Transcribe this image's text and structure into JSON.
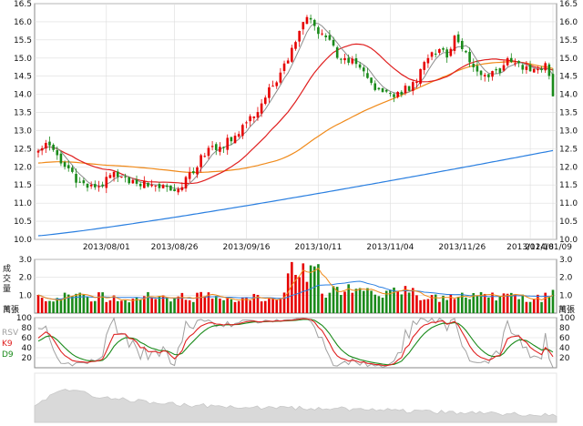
{
  "colors": {
    "up": "#e60000",
    "down": "#1a8a1a",
    "ma_short": "#8c8c8c",
    "ma_mid": "#e02020",
    "ma_long": "#f08a1a",
    "ma_longer": "#2a7fe0",
    "rsv": "#a0a0a0",
    "k9": "#e02020",
    "d9": "#1a8a1a",
    "grid": "#dddddd",
    "frame": "#8a8a8a",
    "overview": "#d9d9d9"
  },
  "price_panel": {
    "ylim": [
      10.0,
      16.5
    ],
    "y_ticks": [
      "16.5",
      "16.0",
      "15.5",
      "15.0",
      "14.5",
      "14.0",
      "13.5",
      "13.0",
      "12.5",
      "12.0",
      "11.5",
      "11.0",
      "10.5",
      "10.0"
    ],
    "x_tick_labels": [
      "2013/08/01",
      "2013/08/26",
      "2013/09/16",
      "2013/10/11",
      "2013/11/04",
      "2013/11/26",
      "2013/12/18",
      "2014/01/09"
    ]
  },
  "volume_panel": {
    "label": "成交量",
    "ylim": [
      0,
      3.0
    ],
    "y_ticks": [
      "3.0",
      "2.0",
      "1.0"
    ],
    "unit_label_left": "萬張",
    "unit_label_right": "萬張"
  },
  "kd_panel": {
    "legend": [
      "RSV",
      "K9",
      "D9"
    ],
    "ylim": [
      0,
      100
    ],
    "y_ticks": [
      "100",
      "80",
      "60",
      "40",
      "20"
    ]
  },
  "chart_data": {
    "type": "candlestick",
    "price": {
      "anchors": [
        [
          0,
          12.45
        ],
        [
          3,
          12.7
        ],
        [
          5,
          12.3
        ],
        [
          8,
          11.9
        ],
        [
          11,
          11.55
        ],
        [
          14,
          11.4
        ],
        [
          17,
          11.55
        ],
        [
          20,
          11.8
        ],
        [
          24,
          11.65
        ],
        [
          28,
          11.55
        ],
        [
          31,
          11.5
        ],
        [
          35,
          11.3
        ],
        [
          38,
          11.5
        ],
        [
          41,
          11.9
        ],
        [
          44,
          12.4
        ],
        [
          48,
          12.55
        ],
        [
          52,
          12.85
        ],
        [
          55,
          13.2
        ],
        [
          58,
          13.6
        ],
        [
          61,
          14.1
        ],
        [
          64,
          14.6
        ],
        [
          66,
          15.0
        ],
        [
          69,
          15.8
        ],
        [
          71,
          16.1
        ],
        [
          73,
          15.9
        ],
        [
          75,
          15.6
        ],
        [
          77,
          15.4
        ],
        [
          79,
          15.1
        ],
        [
          82,
          14.95
        ],
        [
          84,
          14.9
        ],
        [
          86,
          14.55
        ],
        [
          88,
          14.3
        ],
        [
          90,
          14.15
        ],
        [
          92,
          14.0
        ],
        [
          94,
          13.9
        ],
        [
          96,
          14.1
        ],
        [
          98,
          14.2
        ],
        [
          100,
          14.4
        ],
        [
          102,
          14.8
        ],
        [
          104,
          15.1
        ],
        [
          106,
          15.2
        ],
        [
          108,
          15.1
        ],
        [
          110,
          15.6
        ],
        [
          112,
          15.35
        ],
        [
          114,
          14.8
        ],
        [
          116,
          14.55
        ],
        [
          118,
          14.5
        ],
        [
          120,
          14.6
        ],
        [
          122,
          14.65
        ],
        [
          124,
          14.9
        ],
        [
          126,
          14.8
        ],
        [
          128,
          14.75
        ],
        [
          130,
          14.7
        ],
        [
          132,
          14.75
        ],
        [
          134,
          14.8
        ],
        [
          135,
          14.6
        ],
        [
          136,
          14.05
        ]
      ],
      "ma_short_days": 5,
      "ma_mid_days": 20,
      "ma_long_days": 60,
      "ma_longer": {
        "start": 10.1,
        "end": 12.45
      },
      "ma_long_prefix": 12.1
    },
    "volume_baseline": 0.6,
    "volume_short_ma_days": 5,
    "volume_long_ma_days": 20,
    "kd": {
      "k_smoothing": 3,
      "d_smoothing": 3
    },
    "overview": {
      "anchors": [
        [
          0,
          0.35
        ],
        [
          8,
          0.7
        ],
        [
          15,
          0.55
        ],
        [
          25,
          0.45
        ],
        [
          40,
          0.35
        ],
        [
          60,
          0.3
        ],
        [
          80,
          0.28
        ],
        [
          100,
          0.22
        ],
        [
          120,
          0.18
        ],
        [
          136,
          0.15
        ]
      ]
    }
  }
}
